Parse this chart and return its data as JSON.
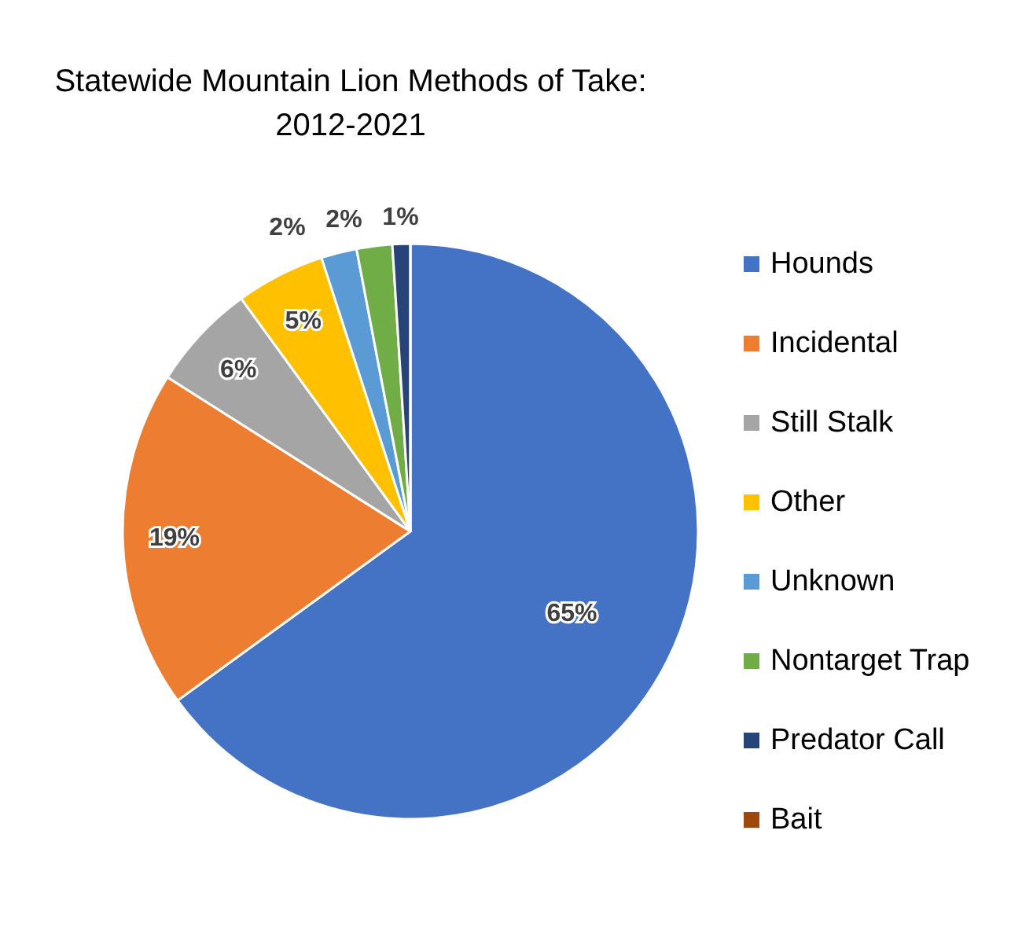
{
  "chart_data": {
    "type": "pie",
    "title": "Statewide Mountain Lion Methods of Take: 2012-2021",
    "categories": [
      "Hounds",
      "Incidental",
      "Still Stalk",
      "Other",
      "Unknown",
      "Nontarget Trap",
      "Predator Call",
      "Bait"
    ],
    "values": [
      65,
      19,
      6,
      5,
      2,
      2,
      1,
      0
    ],
    "value_labels": [
      "65%",
      "19%",
      "6%",
      "5%",
      "2%",
      "2%",
      "1%",
      null
    ],
    "colors": [
      "#4472c4",
      "#ed7d31",
      "#a5a5a5",
      "#ffc000",
      "#5b9bd5",
      "#70ad47",
      "#264478",
      "#9e480e"
    ],
    "legend": "right"
  }
}
